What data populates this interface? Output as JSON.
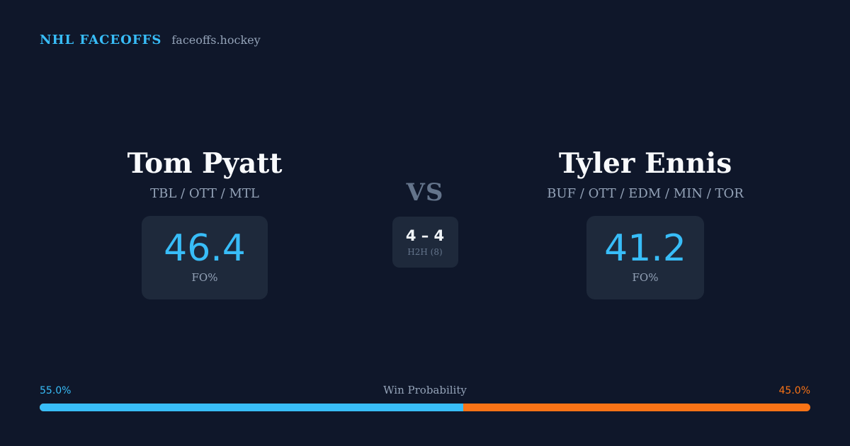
{
  "brand": {
    "name": "NHL FACEOFFS",
    "domain": "faceoffs.hockey",
    "accent_color": "#38bdf8"
  },
  "matchup": {
    "left": {
      "name": "Tom Pyatt",
      "teams": "TBL / OTT / MTL",
      "stat_value": "46.4",
      "stat_label": "FO%"
    },
    "right": {
      "name": "Tyler Ennis",
      "teams": "BUF / OTT / EDM / MIN / TOR",
      "stat_value": "41.2",
      "stat_label": "FO%"
    },
    "vs_label": "VS",
    "h2h": {
      "score": "4 – 4",
      "label": "H2H (8)"
    }
  },
  "win_probability": {
    "title": "Win Probability",
    "left_label": "55.0%",
    "right_label": "45.0%",
    "left_fraction": 0.55,
    "left_color": "#38bdf8",
    "right_color": "#f97316"
  }
}
